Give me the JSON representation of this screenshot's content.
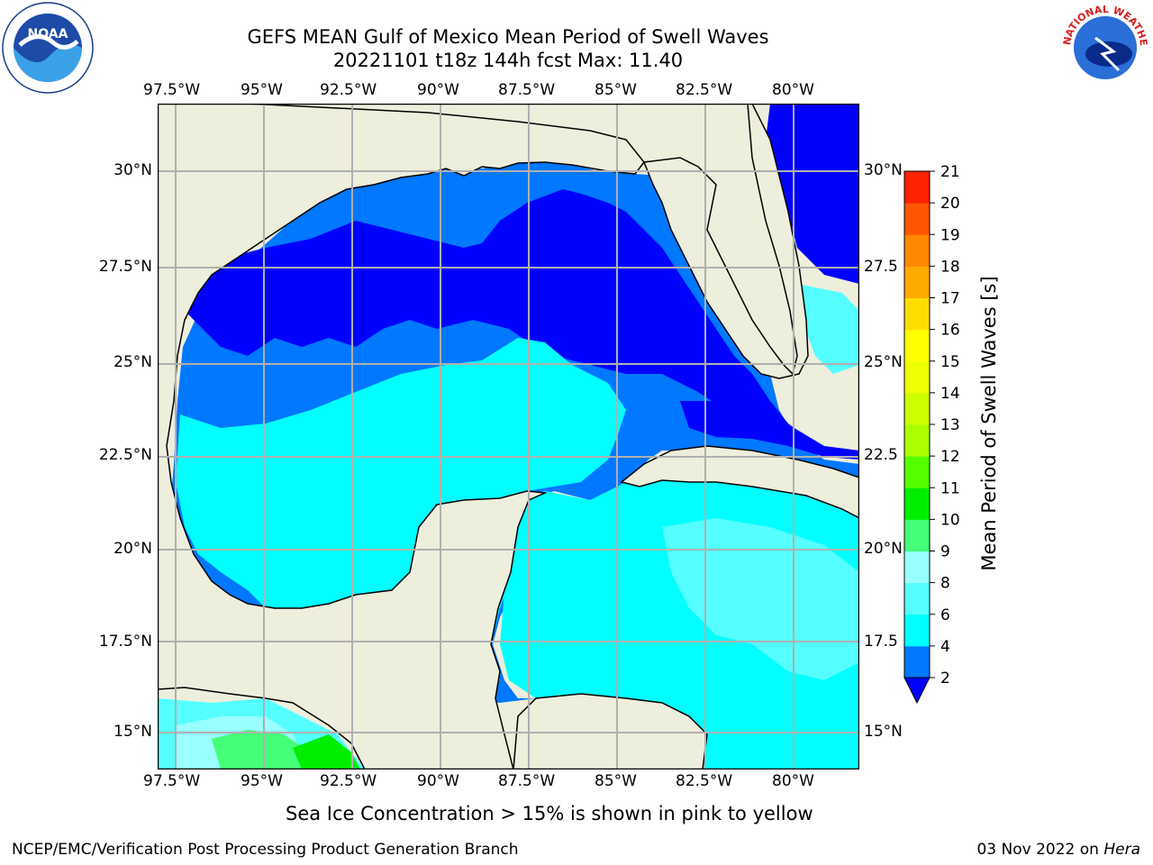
{
  "title": {
    "line1": "GEFS MEAN Gulf of Mexico Mean Period of Swell Waves",
    "line2": "20221101 t18z 144h fcst   Max: 11.40"
  },
  "logos": {
    "noaa_text": "NOAA",
    "nws_text": "NATIONAL WEATHER SERVICE"
  },
  "map": {
    "lon_labels": [
      "97.5°W",
      "95°W",
      "92.5°W",
      "90°W",
      "87.5°W",
      "85°W",
      "82.5°W",
      "80°W"
    ],
    "lat_labels_left": [
      "30°N",
      "27.5°N",
      "25°N",
      "22.5°N",
      "20°N",
      "17.5°N",
      "15°N"
    ],
    "lat_labels_right": [
      "30°N",
      "27.5",
      "25°N",
      "22.5",
      "20°N",
      "17.5",
      "15°N"
    ],
    "colors": {
      "land": "#eeeedd",
      "grid": "#b0b0b0",
      "coast": "#000000"
    }
  },
  "colorbar": {
    "label": "Mean Period of Swell Waves [s]",
    "ticks": [
      "2",
      "4",
      "6",
      "8",
      "9",
      "10",
      "11",
      "12",
      "13",
      "14",
      "15",
      "16",
      "17",
      "18",
      "19",
      "20",
      "21"
    ],
    "colors": [
      "#0000ff",
      "#0078ff",
      "#00ffff",
      "#55ffff",
      "#99ffff",
      "#44ff77",
      "#00ee00",
      "#55ff00",
      "#aaff00",
      "#ccff00",
      "#eeff00",
      "#ffff00",
      "#ffdd00",
      "#ffaa00",
      "#ff8800",
      "#ff5500",
      "#ff2200",
      "#ff0000"
    ]
  },
  "caption": "Sea Ice Concentration > 15% is shown in pink to yellow",
  "footer": {
    "left": "NCEP/EMC/Verification Post Processing Product Generation Branch",
    "date": "03 Nov 2022 on ",
    "host": "Hera"
  }
}
